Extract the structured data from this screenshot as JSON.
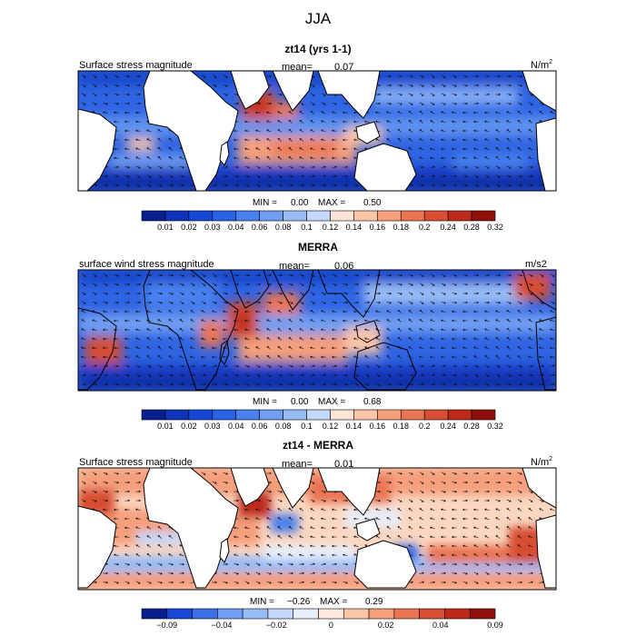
{
  "figure_title": "JJA",
  "chart_data": [
    {
      "type": "heatmap",
      "title": "zt14 (yrs 1-1)",
      "field_label": "Surface stress magnitude",
      "mean_label": "mean=",
      "mean_value": "0.07",
      "units": "N/m",
      "units_sup": "2",
      "min_label": "MIN =",
      "min_value": "0.00",
      "max_label": "MAX =",
      "max_value": "0.50",
      "colorbar_ticks": [
        "0.01",
        "0.02",
        "0.03",
        "0.04",
        "0.06",
        "0.08",
        "0.1",
        "0.12",
        "0.14",
        "0.16",
        "0.18",
        "0.2",
        "0.24",
        "0.28",
        "0.32"
      ]
    },
    {
      "type": "heatmap",
      "title": "MERRA",
      "field_label": "surface wind stress magnitude",
      "mean_label": "mean=",
      "mean_value": "0.06",
      "units": "m/s2",
      "units_sup": "",
      "min_label": "MIN =",
      "min_value": "0.00",
      "max_label": "MAX =",
      "max_value": "0.68",
      "colorbar_ticks": [
        "0.01",
        "0.02",
        "0.03",
        "0.04",
        "0.06",
        "0.08",
        "0.1",
        "0.12",
        "0.14",
        "0.16",
        "0.18",
        "0.2",
        "0.24",
        "0.28",
        "0.32"
      ]
    },
    {
      "type": "heatmap",
      "title": "zt14 - MERRA",
      "field_label": "Surface stress magnitude",
      "mean_label": "mean=",
      "mean_value": "0.01",
      "units": "N/m",
      "units_sup": "2",
      "min_label": "MIN =",
      "min_value": "−0.26",
      "max_label": "MAX =",
      "max_value": "0.29",
      "colorbar_ticks": [
        "−0.09",
        "−0.04",
        "−0.02",
        "0",
        "0.02",
        "0.04",
        "0.09"
      ]
    }
  ],
  "palettes": {
    "magnitude": [
      "#08208f",
      "#0d33b8",
      "#1747d6",
      "#2a62e6",
      "#4a80ee",
      "#6f9ef2",
      "#98bcf6",
      "#c3d8fa",
      "#fde4d6",
      "#fbc5a8",
      "#f59f7b",
      "#ea7553",
      "#d84e32",
      "#bd2a1a",
      "#8f0f0a"
    ],
    "difference": [
      "#08208f",
      "#1747d6",
      "#3a6fe8",
      "#6f9ef2",
      "#98bcf6",
      "#c3d8fa",
      "#e6eefc",
      "#fde9dc",
      "#fbc5a8",
      "#f59f7b",
      "#ea7553",
      "#d84e32",
      "#bd2a1a",
      "#8f0f0a"
    ]
  }
}
